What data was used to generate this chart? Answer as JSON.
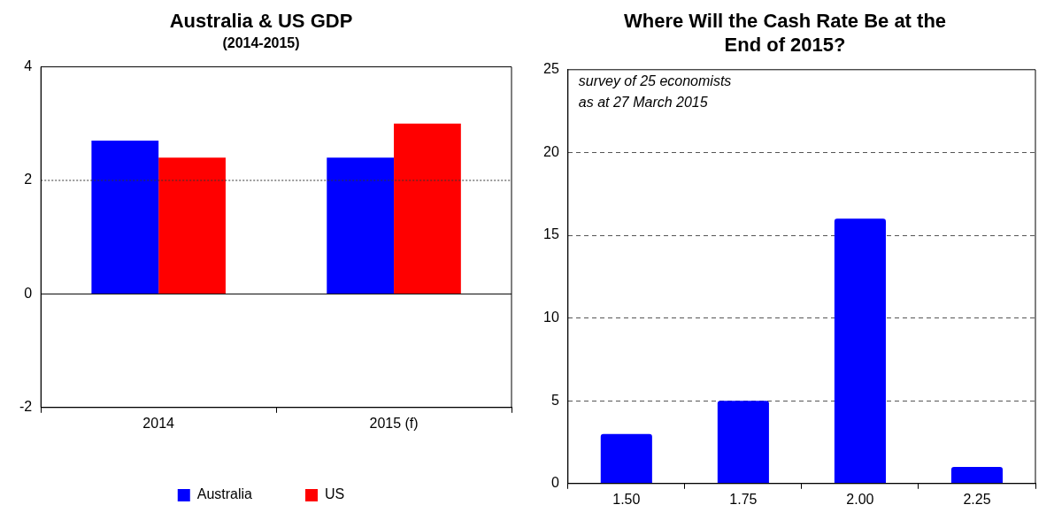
{
  "chart_data": [
    {
      "type": "bar",
      "title": "Australia & US GDP",
      "subtitle": "(2014-2015)",
      "categories": [
        "2014",
        "2015 (f)"
      ],
      "series": [
        {
          "name": "Australia",
          "color": "#0000ff",
          "values": [
            2.7,
            2.4
          ]
        },
        {
          "name": "US",
          "color": "#ff0000",
          "values": [
            2.4,
            3.0
          ]
        }
      ],
      "ylim": [
        -2,
        4
      ],
      "yticks": [
        -2,
        0,
        2,
        4
      ],
      "legend": "bottom",
      "ref_lines": [
        {
          "axis": "y",
          "value": 2,
          "line_style": "dotted",
          "color": "#333333"
        }
      ]
    },
    {
      "type": "bar",
      "title": "Where Will the Cash Rate Be at the End of 2015?",
      "categories": [
        "1.50",
        "1.75",
        "2.00",
        "2.25"
      ],
      "values": [
        3,
        5,
        16,
        1
      ],
      "color": "#0000ff",
      "ylim": [
        0,
        25
      ],
      "yticks": [
        0,
        5,
        10,
        15,
        20,
        25
      ],
      "grid": "y",
      "annotations": [
        "survey of 25 economists as at 27 March 2015"
      ]
    }
  ]
}
